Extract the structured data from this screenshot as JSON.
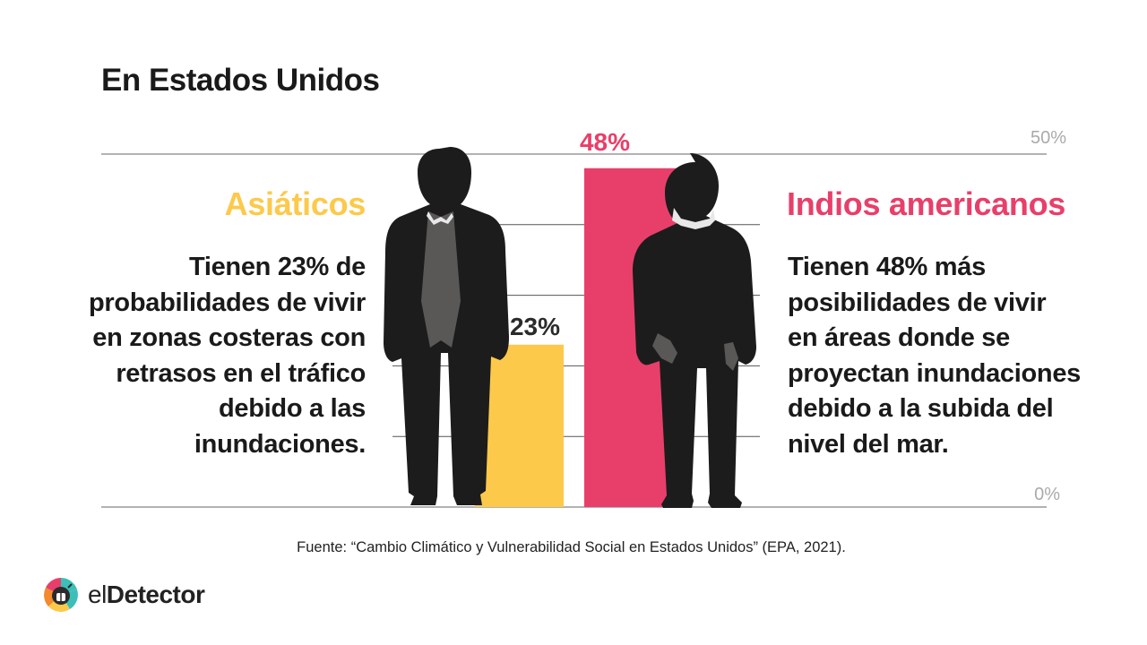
{
  "title": "En Estados Unidos",
  "left_group": {
    "title": "Asiáticos",
    "description": "Tienen 23% de\nprobabilidades de vivir\nen zonas costeras con\nretrasos en el tráfico\ndebido a las\ninundaciones."
  },
  "right_group": {
    "title": "Indios americanos",
    "description": "Tienen 48% más\nposibilidades de vivir\nen áreas donde se\nproyectan inundaciones\ndebido a la subida del\nnivel del mar."
  },
  "source": "Fuente: “Cambio Climático y Vulnerabilidad Social en Estados Unidos” (EPA, 2021).",
  "logo": {
    "prefix": "el",
    "name": "Detector"
  },
  "colors": {
    "asian": "#fcc94a",
    "native": "#e83f6a",
    "axis_label": "#aaaaaa",
    "silhouette": "#1c1c1c"
  },
  "chart_data": {
    "type": "bar",
    "categories": [
      "Asiáticos",
      "Indios americanos"
    ],
    "values": [
      23,
      48
    ],
    "data_labels": [
      "23%",
      "48%"
    ],
    "ylim": [
      0,
      50
    ],
    "y_tick_labels": [
      "0%",
      "50%"
    ],
    "grid": true,
    "icons": [
      "person-silhouette-icon",
      "person-silhouette-icon"
    ]
  }
}
